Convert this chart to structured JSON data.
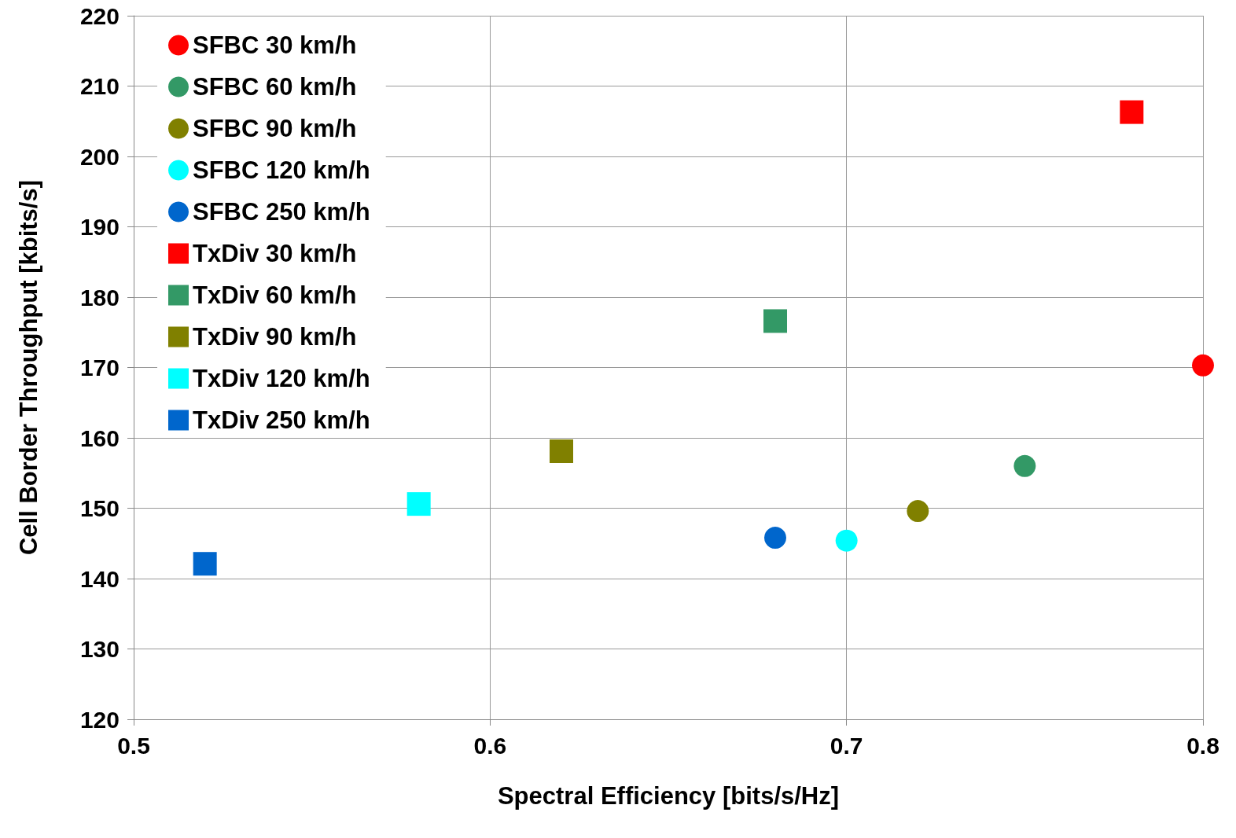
{
  "chart_data": {
    "type": "scatter",
    "xlabel": "Spectral Efficiency [bits/s/Hz]",
    "ylabel": "Cell Border Throughput [kbits/s]",
    "xlim": [
      0.5,
      0.8
    ],
    "xticks": [
      0.5,
      0.6,
      0.7,
      0.8
    ],
    "ylim": [
      120,
      220
    ],
    "yticks": [
      120,
      130,
      140,
      150,
      160,
      170,
      180,
      190,
      200,
      210,
      220
    ],
    "grid": true,
    "legend": "top left",
    "series": [
      {
        "name": "SFBC 30 km/h",
        "color": "#ff0000",
        "marker": "circle",
        "x": [
          0.8
        ],
        "values": [
          170.3
        ]
      },
      {
        "name": "SFBC 60 km/h",
        "color": "#339966",
        "marker": "circle",
        "x": [
          0.75
        ],
        "values": [
          156.0
        ]
      },
      {
        "name": "SFBC 90 km/h",
        "color": "#808000",
        "marker": "circle",
        "x": [
          0.72
        ],
        "values": [
          149.6
        ]
      },
      {
        "name": "SFBC 120 km/h",
        "color": "#00ffff",
        "marker": "circle",
        "x": [
          0.7
        ],
        "values": [
          145.4
        ]
      },
      {
        "name": "SFBC 250 km/h",
        "color": "#0066cc",
        "marker": "circle",
        "x": [
          0.68
        ],
        "values": [
          145.8
        ]
      },
      {
        "name": "TxDiv 30 km/h",
        "color": "#ff0000",
        "marker": "square",
        "x": [
          0.78
        ],
        "values": [
          206.3
        ]
      },
      {
        "name": "TxDiv 60 km/h",
        "color": "#339966",
        "marker": "square",
        "x": [
          0.68
        ],
        "values": [
          176.6
        ]
      },
      {
        "name": "TxDiv 90 km/h",
        "color": "#808000",
        "marker": "square",
        "x": [
          0.62
        ],
        "values": [
          158.1
        ]
      },
      {
        "name": "TxDiv 120 km/h",
        "color": "#00ffff",
        "marker": "square",
        "x": [
          0.58
        ],
        "values": [
          150.6
        ]
      },
      {
        "name": "TxDiv 250 km/h",
        "color": "#0066cc",
        "marker": "square",
        "x": [
          0.52
        ],
        "values": [
          142.1
        ]
      }
    ]
  }
}
